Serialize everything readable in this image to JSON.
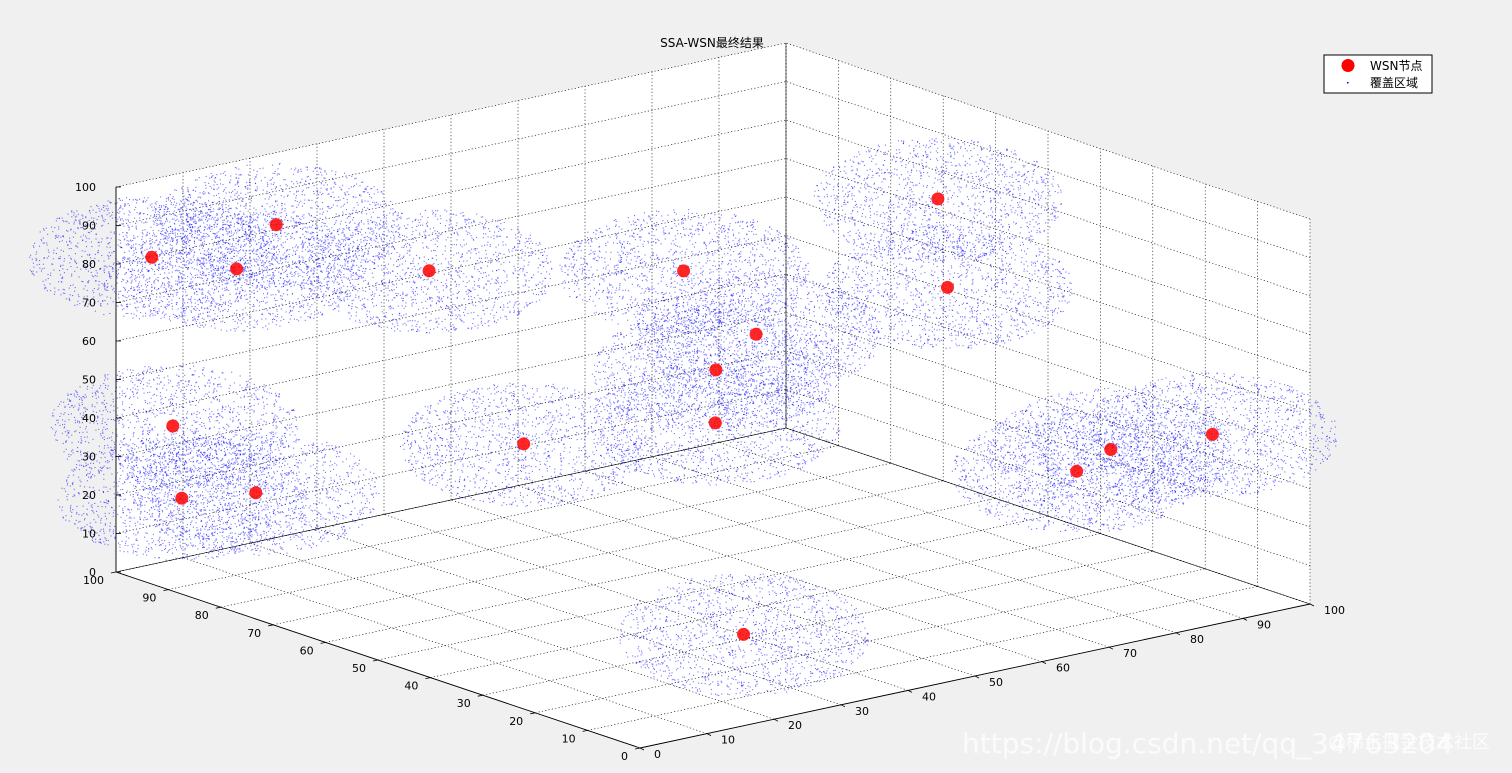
{
  "chart_data": {
    "type": "scatter",
    "title": "SSA-WSN最终结果",
    "xlabel": "",
    "ylabel": "",
    "zlabel": "",
    "xlim": [
      0,
      100
    ],
    "ylim": [
      0,
      100
    ],
    "zlim": [
      0,
      100
    ],
    "x_ticks": [
      0,
      10,
      20,
      30,
      40,
      50,
      60,
      70,
      80,
      90,
      100
    ],
    "y_ticks": [
      0,
      10,
      20,
      30,
      40,
      50,
      60,
      70,
      80,
      90,
      100
    ],
    "z_ticks": [
      0,
      10,
      20,
      30,
      40,
      50,
      60,
      70,
      80,
      90,
      100
    ],
    "grid": true,
    "box": true,
    "legend_position": "top-right",
    "series": [
      {
        "name": "WSN节点",
        "marker": "filled-circle",
        "color": "#ff0000",
        "points": [
          {
            "x": 3,
            "y": 97,
            "z": 82
          },
          {
            "x": 20,
            "y": 95,
            "z": 85
          },
          {
            "x": 18,
            "y": 100,
            "z": 72
          },
          {
            "x": 35,
            "y": 85,
            "z": 72
          },
          {
            "x": 82,
            "y": 48,
            "z": 90
          },
          {
            "x": 55,
            "y": 62,
            "z": 75
          },
          {
            "x": 85,
            "y": 50,
            "z": 65
          },
          {
            "x": 58,
            "y": 52,
            "z": 62
          },
          {
            "x": 52,
            "y": 52,
            "z": 55
          },
          {
            "x": 48,
            "y": 47,
            "z": 45
          },
          {
            "x": 28,
            "y": 58,
            "z": 42
          },
          {
            "x": 3,
            "y": 93,
            "z": 40
          },
          {
            "x": 6,
            "y": 81,
            "z": 27
          },
          {
            "x": 2,
            "y": 90,
            "z": 23
          },
          {
            "x": 73,
            "y": 10,
            "z": 40
          },
          {
            "x": 82,
            "y": 15,
            "z": 40
          },
          {
            "x": 87,
            "y": 2,
            "z": 48
          },
          {
            "x": 35,
            "y": 25,
            "z": 5
          }
        ]
      },
      {
        "name": "覆盖区域",
        "marker": "point",
        "color": "#0000ff",
        "sensing_radius": 17
      }
    ]
  },
  "watermark": {
    "main": "https://blog.csdn.net/qq_34763204",
    "sub": "@稀土掘金技术社区"
  }
}
